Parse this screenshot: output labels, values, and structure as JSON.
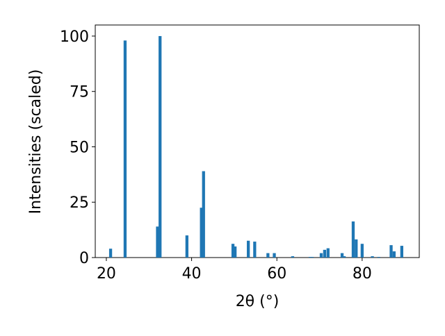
{
  "chart_data": {
    "type": "bar",
    "xlabel": "2θ (°)",
    "ylabel": "Intensities (scaled)",
    "x": [
      21.0,
      24.4,
      32.0,
      32.6,
      38.9,
      42.3,
      42.8,
      49.7,
      50.2,
      53.3,
      54.8,
      57.9,
      59.4,
      63.7,
      67.8,
      68.3,
      70.4,
      71.2,
      72.0,
      75.3,
      75.8,
      77.9,
      78.6,
      80.0,
      82.4,
      83.9,
      86.8,
      87.5,
      89.3
    ],
    "values": [
      4,
      98,
      14,
      100,
      10,
      22.5,
      39,
      6.2,
      5,
      7.6,
      7.2,
      2,
      2,
      0.6,
      0.3,
      0.3,
      2,
      3.5,
      4.2,
      2,
      0.6,
      16.3,
      8.2,
      6.2,
      0.6,
      0.3,
      5.6,
      2.8,
      5.3
    ],
    "color": "#1f77b4",
    "xlim": [
      17.4,
      93.4
    ],
    "xticks": [
      20,
      40,
      60,
      80
    ],
    "ylim": [
      0,
      105
    ],
    "yticks": [
      0,
      25,
      50,
      75,
      100
    ]
  }
}
